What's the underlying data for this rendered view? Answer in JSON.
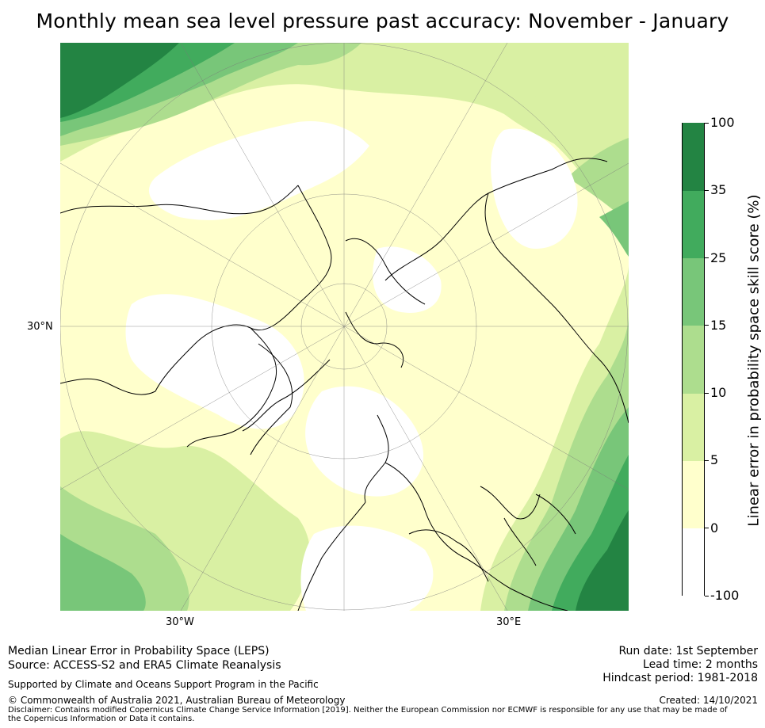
{
  "title": "Monthly mean sea level pressure past accuracy: November - January",
  "map": {
    "projection": "north-polar-stereographic",
    "lat_labels": {
      "left": "30°N"
    },
    "lon_labels": {
      "bottom_left": "30°W",
      "bottom_right": "30°E"
    }
  },
  "colorbar": {
    "title": "Linear error in probability space skill score (%)",
    "tick_labels": [
      "-100",
      "0",
      "5",
      "10",
      "15",
      "25",
      "35",
      "100"
    ],
    "bins": [
      {
        "from": "-100",
        "to": "0",
        "color": "#ffffff"
      },
      {
        "from": "0",
        "to": "5",
        "color": "#ffffcc"
      },
      {
        "from": "5",
        "to": "10",
        "color": "#d9f0a3"
      },
      {
        "from": "10",
        "to": "15",
        "color": "#addd8e"
      },
      {
        "from": "15",
        "to": "25",
        "color": "#78c679"
      },
      {
        "from": "25",
        "to": "35",
        "color": "#41ab5d"
      },
      {
        "from": "35",
        "to": "100",
        "color": "#238443"
      }
    ]
  },
  "footer": {
    "left_line1": "Median Linear Error in Probability Space (LEPS)",
    "left_line2": "Source: ACCESS-S2 and ERA5 Climate Reanalysis",
    "support": "Supported by Climate and Oceans Support Program in the Pacific",
    "copyright": "© Commonwealth of Australia 2021, Australian Bureau of Meteorology",
    "disclaimer": "Disclaimer: Contains modified Copernicus Climate Change Service Information [2019]. Neither the European Commission nor ECMWF is responsible for any use that may be made of the Copernicus Information or Data it contains.",
    "run_date": "Run date: 1st September",
    "lead_time": "Lead time: 2 months",
    "hindcast": "Hindcast period: 1981-2018",
    "created": "Created: 14/10/2021"
  }
}
